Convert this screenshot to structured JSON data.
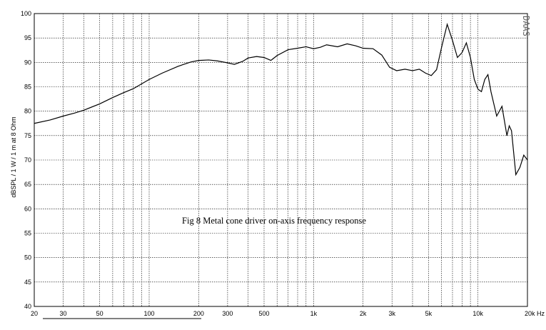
{
  "chart_data": {
    "type": "line",
    "title": "",
    "xlabel": "",
    "ylabel": "dBSPL / 1 W / 1 m at 8 Ohm",
    "annotation": "Fig 8  Metal cone driver on-axis frequency response",
    "watermark": "DAAS",
    "x_scale": "log",
    "xlim": [
      20,
      20000
    ],
    "ylim": [
      40,
      100
    ],
    "x_ticks": [
      {
        "value": 20,
        "label": "20"
      },
      {
        "value": 30,
        "label": "30"
      },
      {
        "value": 50,
        "label": "50"
      },
      {
        "value": 100,
        "label": "100"
      },
      {
        "value": 200,
        "label": "200"
      },
      {
        "value": 300,
        "label": "300"
      },
      {
        "value": 500,
        "label": "500"
      },
      {
        "value": 1000,
        "label": "1k"
      },
      {
        "value": 2000,
        "label": "2k"
      },
      {
        "value": 3000,
        "label": "3k"
      },
      {
        "value": 5000,
        "label": "5k"
      },
      {
        "value": 10000,
        "label": "10k"
      },
      {
        "value": 20000,
        "label": "20k Hz"
      }
    ],
    "y_ticks": [
      40,
      45,
      50,
      55,
      60,
      65,
      70,
      75,
      80,
      85,
      90,
      95,
      100
    ],
    "grid": true,
    "series": [
      {
        "color": "#000000",
        "x": [
          20,
          25,
          30,
          35,
          40,
          50,
          60,
          70,
          80,
          100,
          120,
          150,
          180,
          200,
          230,
          260,
          300,
          330,
          370,
          400,
          450,
          500,
          550,
          600,
          700,
          800,
          900,
          1000,
          1100,
          1200,
          1400,
          1600,
          1800,
          2000,
          2300,
          2600,
          2900,
          3200,
          3600,
          4000,
          4400,
          4800,
          5200,
          5600,
          6000,
          6500,
          7000,
          7500,
          8000,
          8500,
          9000,
          9500,
          10000,
          10500,
          11000,
          11500,
          12000,
          13000,
          14000,
          15000,
          15500,
          16000,
          17000,
          18000,
          19000,
          20000
        ],
        "y": [
          77.5,
          78.2,
          79.0,
          79.6,
          80.2,
          81.5,
          82.8,
          83.8,
          84.6,
          86.5,
          87.8,
          89.2,
          90.1,
          90.4,
          90.5,
          90.3,
          89.9,
          89.6,
          90.2,
          90.9,
          91.2,
          91.0,
          90.4,
          91.4,
          92.6,
          92.9,
          93.2,
          92.8,
          93.1,
          93.6,
          93.2,
          93.8,
          93.4,
          92.9,
          92.8,
          91.5,
          89.0,
          88.3,
          88.6,
          88.3,
          88.6,
          87.8,
          87.3,
          88.5,
          93.0,
          97.8,
          94.5,
          91.0,
          92.0,
          94.0,
          91.0,
          86.5,
          84.5,
          84.0,
          86.5,
          87.5,
          84.0,
          79.0,
          81.0,
          75.0,
          77.0,
          76.0,
          67.0,
          68.5,
          71.0,
          70.0
        ]
      }
    ]
  }
}
